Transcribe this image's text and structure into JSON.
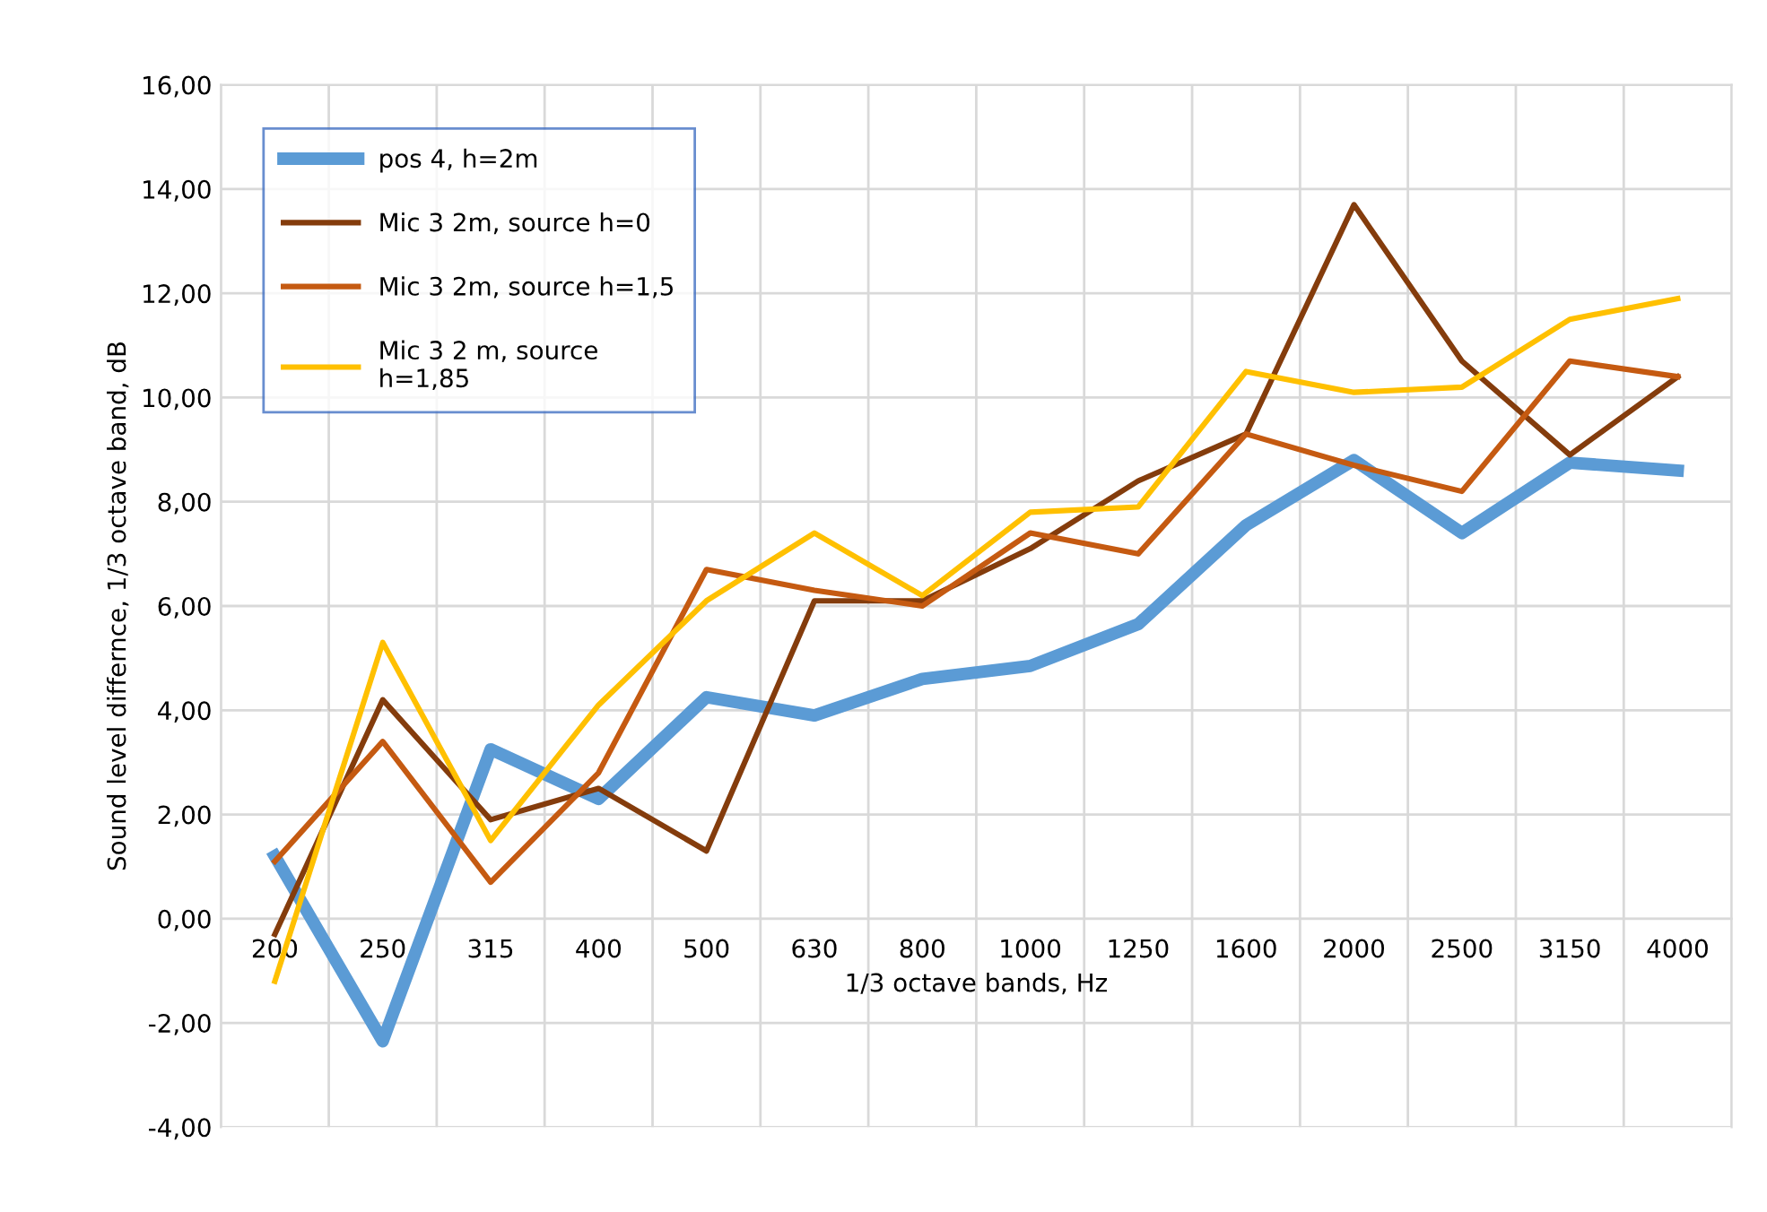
{
  "chart_data": {
    "type": "line",
    "xlabel": "1/3 octave bands, Hz",
    "ylabel": "Sound level differnce, 1/3 octave band, dB",
    "categories": [
      "200",
      "250",
      "315",
      "400",
      "500",
      "630",
      "800",
      "1000",
      "1250",
      "1600",
      "2000",
      "2500",
      "3150",
      "4000"
    ],
    "ylim": [
      -4,
      16
    ],
    "yticks": [
      {
        "value": -4,
        "label": "-4,00"
      },
      {
        "value": -2,
        "label": "-2,00"
      },
      {
        "value": 0,
        "label": "0,00"
      },
      {
        "value": 2,
        "label": "2,00"
      },
      {
        "value": 4,
        "label": "4,00"
      },
      {
        "value": 6,
        "label": "6,00"
      },
      {
        "value": 8,
        "label": "8,00"
      },
      {
        "value": 10,
        "label": "10,00"
      },
      {
        "value": 12,
        "label": "12,00"
      },
      {
        "value": 14,
        "label": "14,00"
      },
      {
        "value": 16,
        "label": "16,00"
      }
    ],
    "grid": true,
    "legend": "top left",
    "marker": "none",
    "line_style": "solid",
    "series": [
      {
        "name": "pos 4, h=2m",
        "color": "#5b9bd5",
        "values": [
          1.2,
          -2.35,
          3.25,
          2.3,
          4.25,
          3.9,
          4.6,
          4.85,
          5.65,
          7.55,
          8.8,
          7.4,
          8.75,
          8.6
        ]
      },
      {
        "name": "Mic 3 2m, source h=0",
        "color": "#843c0c",
        "values": [
          -0.3,
          4.2,
          1.9,
          2.5,
          1.3,
          6.1,
          6.1,
          7.1,
          8.4,
          9.3,
          13.7,
          10.7,
          8.9,
          10.4
        ]
      },
      {
        "name": "Mic 3 2m, source h=1,5",
        "color": "#c55a11",
        "values": [
          1.1,
          3.4,
          0.7,
          2.8,
          6.7,
          6.3,
          6.0,
          7.4,
          7.0,
          9.3,
          8.7,
          8.2,
          10.7,
          10.4
        ]
      },
      {
        "name": "Mic 3 2 m, source\nh=1,85",
        "color": "#ffc000",
        "values": [
          -1.2,
          5.3,
          1.5,
          4.1,
          6.1,
          7.4,
          6.2,
          7.8,
          7.9,
          10.5,
          10.1,
          10.2,
          11.5,
          11.9
        ]
      }
    ]
  }
}
